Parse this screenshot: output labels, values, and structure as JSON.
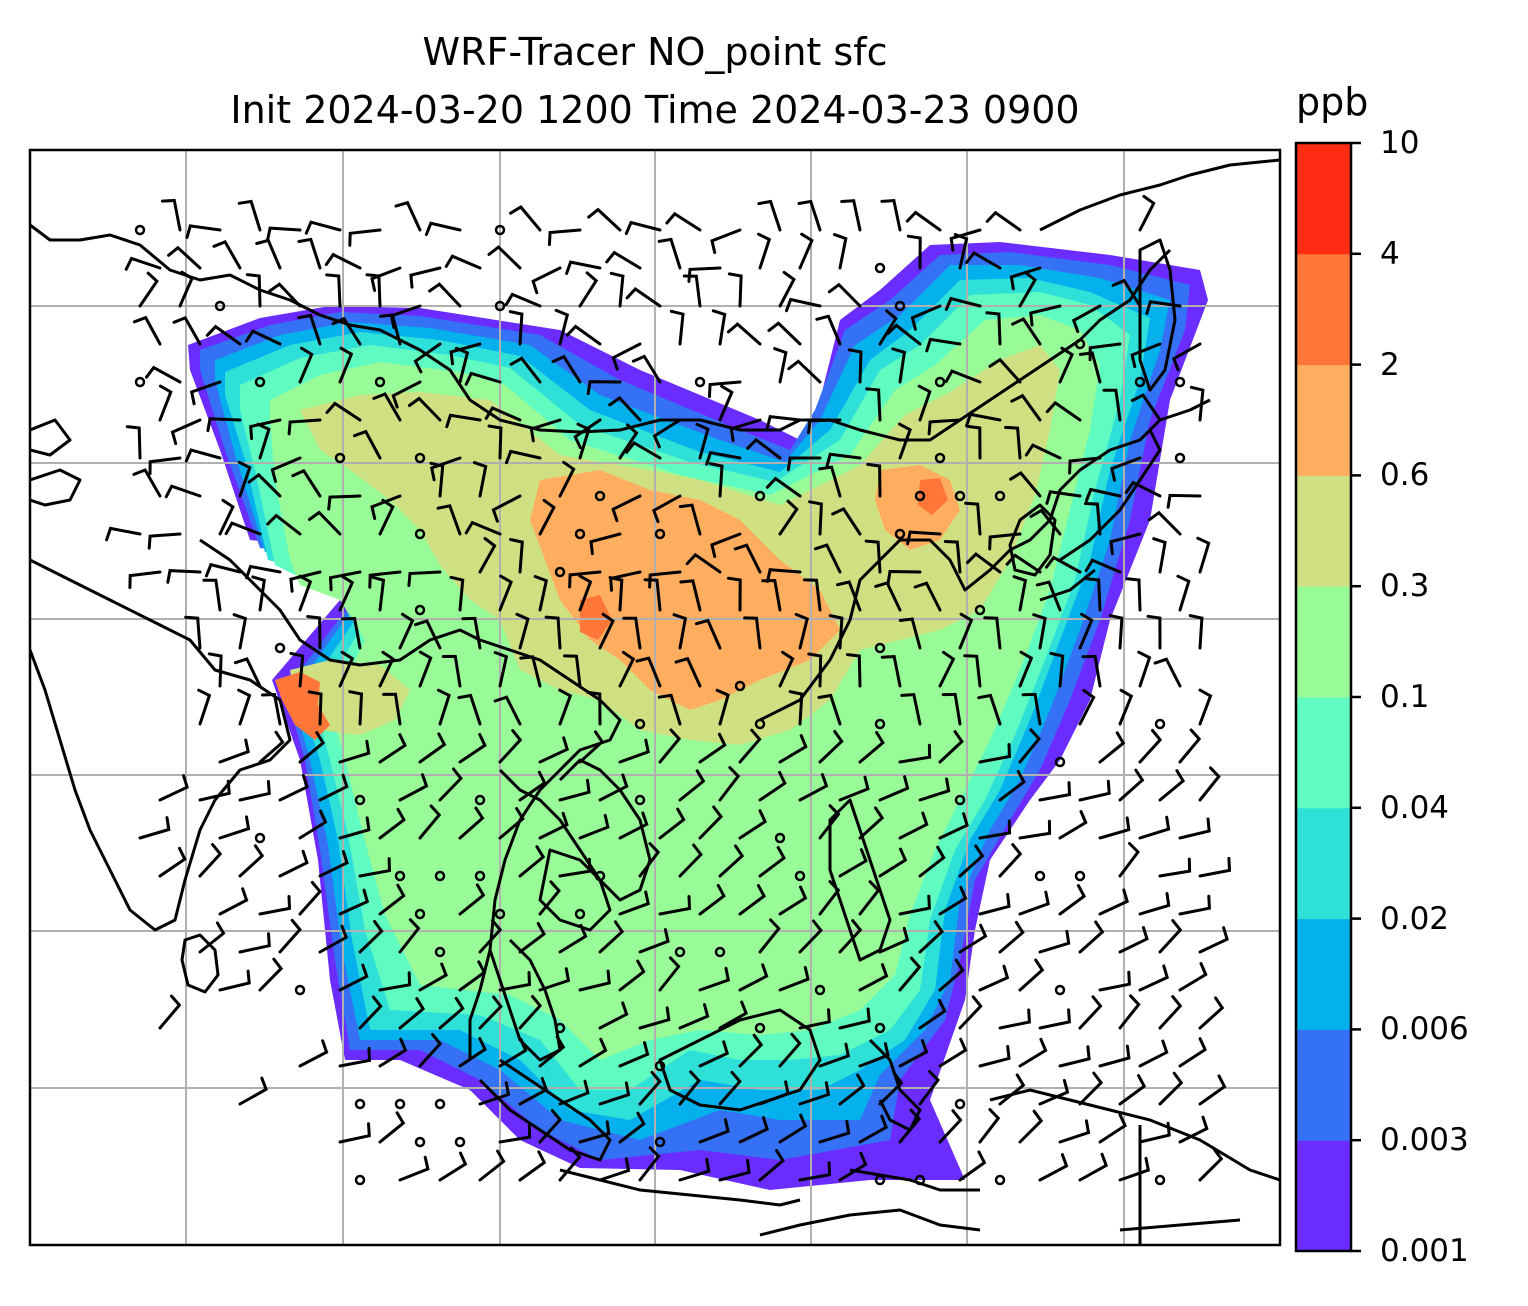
{
  "title": {
    "line1": "WRF-Tracer NO_point sfc",
    "line2": "Init 2024-03-20 1200 Time 2024-03-23 0900"
  },
  "colorbar": {
    "label": "ppb",
    "ticks": [
      "0.001",
      "0.003",
      "0.006",
      "0.02",
      "0.04",
      "0.1",
      "0.3",
      "0.6",
      "2",
      "4",
      "10"
    ],
    "colors": [
      "#6a2cff",
      "#3471f5",
      "#05b1ec",
      "#2ee0d7",
      "#5ffbc0",
      "#99fb98",
      "#cfe083",
      "#ffae5f",
      "#ff7639",
      "#ff2b13"
    ]
  },
  "map": {
    "land_outline_color": "#000000",
    "gridline_color": "#b0b0b0",
    "wind_barb_color": "#000000"
  }
}
